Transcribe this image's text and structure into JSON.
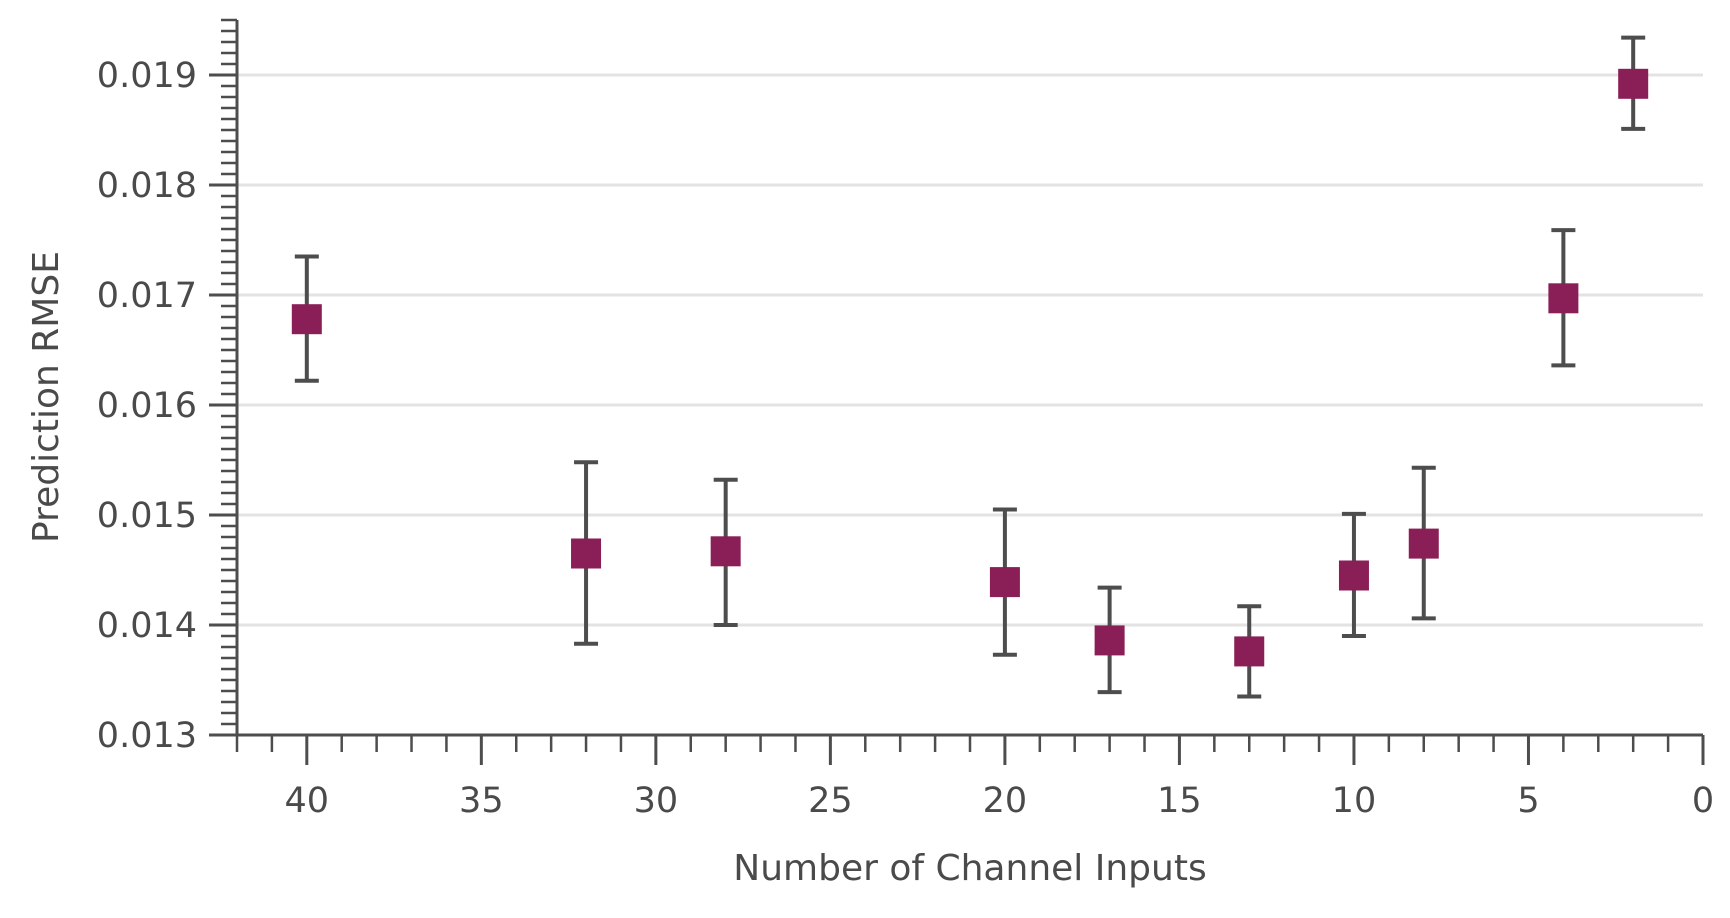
{
  "chart_data": {
    "type": "scatter",
    "xlabel": "Number of Channel Inputs",
    "ylabel": "Prediction RMSE",
    "xlim": [
      42,
      0
    ],
    "ylim": [
      0.013,
      0.0195
    ],
    "x_inverted": true,
    "grid": "horizontal",
    "x_ticks": [
      40,
      35,
      30,
      25,
      20,
      15,
      10,
      5,
      0
    ],
    "x_tick_labels": [
      "40",
      "35",
      "30",
      "25",
      "20",
      "15",
      "10",
      "5",
      "0"
    ],
    "y_ticks": [
      0.013,
      0.014,
      0.015,
      0.016,
      0.017,
      0.018,
      0.019
    ],
    "y_tick_labels": [
      "0.013",
      "0.014",
      "0.015",
      "0.016",
      "0.017",
      "0.018",
      "0.019"
    ],
    "marker": "square",
    "marker_color": "#8a1e56",
    "errorbar_color": "#4d4d4d",
    "series": [
      {
        "points": [
          {
            "x": 40,
            "y": 0.01678,
            "ymin": 0.01622,
            "ymax": 0.01735
          },
          {
            "x": 32,
            "y": 0.01465,
            "ymin": 0.01383,
            "ymax": 0.01548
          },
          {
            "x": 28,
            "y": 0.01467,
            "ymin": 0.014,
            "ymax": 0.01532
          },
          {
            "x": 20,
            "y": 0.01439,
            "ymin": 0.01373,
            "ymax": 0.01505
          },
          {
            "x": 17,
            "y": 0.01386,
            "ymin": 0.01339,
            "ymax": 0.01434
          },
          {
            "x": 13,
            "y": 0.01376,
            "ymin": 0.01335,
            "ymax": 0.01417
          },
          {
            "x": 10,
            "y": 0.01445,
            "ymin": 0.0139,
            "ymax": 0.01501
          },
          {
            "x": 8,
            "y": 0.01474,
            "ymin": 0.01406,
            "ymax": 0.01543
          },
          {
            "x": 4,
            "y": 0.01697,
            "ymin": 0.01636,
            "ymax": 0.01759
          },
          {
            "x": 2,
            "y": 0.01892,
            "ymin": 0.01851,
            "ymax": 0.01934
          }
        ]
      }
    ]
  }
}
